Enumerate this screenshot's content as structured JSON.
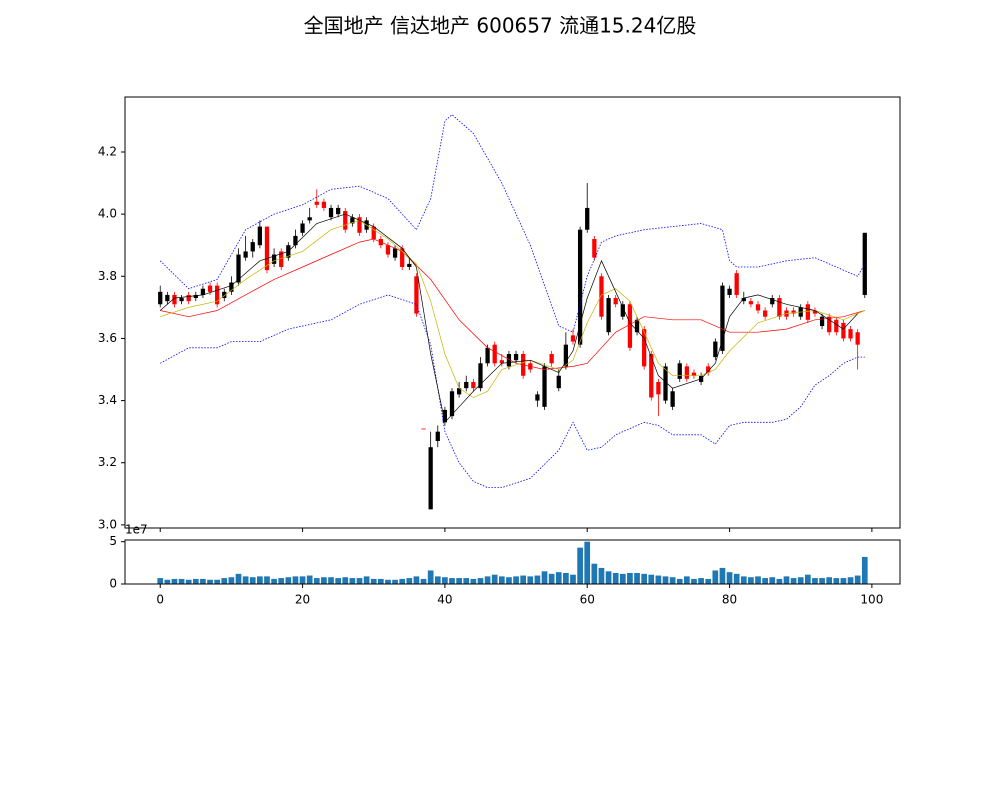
{
  "chart_data": [
    {
      "type": "candlestick",
      "title": "全国地产 信达地产 600657 流通15.24亿股",
      "x": [
        0,
        1,
        2,
        3,
        4,
        5,
        6,
        7,
        8,
        9,
        10,
        11,
        12,
        13,
        14,
        15,
        16,
        17,
        18,
        19,
        20,
        21,
        22,
        23,
        24,
        25,
        26,
        27,
        28,
        29,
        30,
        31,
        32,
        33,
        34,
        35,
        36,
        37,
        38,
        39,
        40,
        41,
        42,
        43,
        44,
        45,
        46,
        47,
        48,
        49,
        50,
        51,
        52,
        53,
        54,
        55,
        56,
        57,
        58,
        59,
        60,
        61,
        62,
        63,
        64,
        65,
        66,
        67,
        68,
        69,
        70,
        71,
        72,
        73,
        74,
        75,
        76,
        77,
        78,
        79,
        80,
        81,
        82,
        83,
        84,
        85,
        86,
        87,
        88,
        89,
        90,
        91,
        92,
        93,
        94,
        95,
        96,
        97,
        98,
        99
      ],
      "open": [
        3.71,
        3.72,
        3.74,
        3.72,
        3.74,
        3.73,
        3.74,
        3.77,
        3.77,
        3.73,
        3.75,
        3.78,
        3.86,
        3.88,
        3.9,
        3.96,
        3.84,
        3.88,
        3.86,
        3.9,
        3.94,
        3.98,
        4.04,
        4.04,
        3.99,
        4.0,
        4.01,
        3.97,
        3.99,
        3.95,
        3.96,
        3.92,
        3.9,
        3.86,
        3.89,
        3.83,
        3.8,
        3.31,
        3.05,
        3.27,
        3.33,
        3.35,
        3.42,
        3.44,
        3.46,
        3.44,
        3.52,
        3.58,
        3.53,
        3.51,
        3.53,
        3.55,
        3.52,
        3.4,
        3.38,
        3.55,
        3.44,
        3.51,
        3.61,
        3.58,
        3.95,
        3.92,
        3.8,
        3.62,
        3.73,
        3.67,
        3.71,
        3.62,
        3.63,
        3.55,
        3.46,
        3.4,
        3.38,
        3.47,
        3.51,
        3.49,
        3.46,
        3.51,
        3.54,
        3.56,
        3.74,
        3.81,
        3.72,
        3.72,
        3.71,
        3.69,
        3.71,
        3.73,
        3.69,
        3.69,
        3.67,
        3.71,
        3.69,
        3.64,
        3.67,
        3.66,
        3.65,
        3.63,
        3.62,
        3.74
      ],
      "high": [
        3.77,
        3.75,
        3.75,
        3.74,
        3.75,
        3.75,
        3.77,
        3.78,
        3.78,
        3.76,
        3.8,
        3.89,
        3.93,
        3.92,
        3.98,
        3.96,
        3.89,
        3.89,
        3.91,
        3.95,
        3.98,
        4.02,
        4.08,
        4.05,
        4.03,
        4.03,
        4.02,
        4.0,
        4.0,
        3.99,
        3.97,
        3.93,
        3.91,
        3.9,
        3.9,
        3.86,
        3.81,
        3.31,
        3.3,
        3.32,
        3.38,
        3.44,
        3.46,
        3.48,
        3.47,
        3.54,
        3.58,
        3.59,
        3.55,
        3.56,
        3.56,
        3.56,
        3.53,
        3.43,
        3.52,
        3.56,
        3.5,
        3.62,
        3.63,
        3.96,
        4.1,
        3.93,
        3.81,
        3.74,
        3.74,
        3.72,
        3.72,
        3.67,
        3.64,
        3.56,
        3.47,
        3.52,
        3.44,
        3.53,
        3.52,
        3.5,
        3.49,
        3.52,
        3.6,
        3.78,
        3.77,
        3.82,
        3.75,
        3.73,
        3.72,
        3.7,
        3.74,
        3.74,
        3.7,
        3.7,
        3.71,
        3.72,
        3.7,
        3.68,
        3.68,
        3.67,
        3.66,
        3.64,
        3.63,
        3.94
      ],
      "low": [
        3.7,
        3.71,
        3.7,
        3.71,
        3.71,
        3.72,
        3.73,
        3.74,
        3.7,
        3.72,
        3.74,
        3.77,
        3.85,
        3.86,
        3.89,
        3.81,
        3.83,
        3.82,
        3.85,
        3.89,
        3.93,
        3.97,
        4.02,
        4.01,
        3.98,
        3.99,
        3.94,
        3.96,
        3.93,
        3.94,
        3.91,
        3.89,
        3.86,
        3.85,
        3.82,
        3.82,
        3.67,
        3.31,
        3.05,
        3.25,
        3.32,
        3.34,
        3.41,
        3.43,
        3.43,
        3.43,
        3.51,
        3.51,
        3.51,
        3.5,
        3.52,
        3.47,
        3.49,
        3.38,
        3.37,
        3.51,
        3.43,
        3.5,
        3.58,
        3.57,
        3.94,
        3.85,
        3.66,
        3.61,
        3.7,
        3.66,
        3.56,
        3.61,
        3.5,
        3.4,
        3.35,
        3.39,
        3.37,
        3.46,
        3.46,
        3.47,
        3.45,
        3.48,
        3.53,
        3.55,
        3.73,
        3.73,
        3.71,
        3.7,
        3.68,
        3.66,
        3.7,
        3.66,
        3.66,
        3.67,
        3.66,
        3.65,
        3.67,
        3.63,
        3.61,
        3.61,
        3.59,
        3.59,
        3.5,
        3.73
      ],
      "close": [
        3.75,
        3.74,
        3.71,
        3.73,
        3.72,
        3.74,
        3.76,
        3.75,
        3.71,
        3.75,
        3.78,
        3.87,
        3.88,
        3.91,
        3.96,
        3.82,
        3.87,
        3.83,
        3.9,
        3.93,
        3.97,
        3.99,
        4.03,
        4.02,
        4.02,
        4.02,
        3.95,
        3.99,
        3.94,
        3.98,
        3.92,
        3.9,
        3.87,
        3.89,
        3.83,
        3.84,
        3.68,
        3.31,
        3.25,
        3.3,
        3.37,
        3.43,
        3.44,
        3.46,
        3.44,
        3.52,
        3.57,
        3.52,
        3.52,
        3.55,
        3.55,
        3.48,
        3.5,
        3.42,
        3.51,
        3.52,
        3.48,
        3.58,
        3.59,
        3.95,
        4.02,
        3.86,
        3.67,
        3.73,
        3.71,
        3.71,
        3.57,
        3.66,
        3.51,
        3.41,
        3.42,
        3.51,
        3.43,
        3.52,
        3.47,
        3.48,
        3.48,
        3.49,
        3.59,
        3.77,
        3.76,
        3.74,
        3.73,
        3.71,
        3.69,
        3.67,
        3.73,
        3.67,
        3.67,
        3.68,
        3.7,
        3.66,
        3.68,
        3.67,
        3.62,
        3.62,
        3.6,
        3.6,
        3.58,
        3.94
      ],
      "up_color": "#000000",
      "down_color": "#ff0000",
      "lines": [
        {
          "color": "#0000ff",
          "style": "dotted",
          "x": [
            0,
            4,
            8,
            12,
            16,
            20,
            24,
            28,
            32,
            36,
            38,
            40,
            41,
            44,
            48,
            52,
            56,
            58,
            60,
            62,
            64,
            68,
            72,
            76,
            79,
            80,
            81,
            84,
            88,
            92,
            96,
            98,
            99
          ],
          "values": [
            3.85,
            3.76,
            3.79,
            3.95,
            4.0,
            4.03,
            4.08,
            4.09,
            4.05,
            3.95,
            4.05,
            4.3,
            4.32,
            4.26,
            4.1,
            3.9,
            3.64,
            3.62,
            3.8,
            3.91,
            3.93,
            3.95,
            3.96,
            3.97,
            3.95,
            3.85,
            3.83,
            3.83,
            3.85,
            3.86,
            3.82,
            3.8,
            3.84
          ]
        },
        {
          "color": "#0000ff",
          "style": "dotted",
          "x": [
            0,
            4,
            8,
            10,
            14,
            18,
            22,
            24,
            28,
            32,
            36,
            38,
            40,
            42,
            44,
            46,
            48,
            52,
            56,
            58,
            60,
            62,
            64,
            68,
            70,
            72,
            76,
            78,
            80,
            82,
            86,
            88,
            90,
            92,
            94,
            96,
            98,
            99
          ],
          "values": [
            3.52,
            3.57,
            3.57,
            3.59,
            3.59,
            3.63,
            3.65,
            3.66,
            3.71,
            3.74,
            3.71,
            3.58,
            3.3,
            3.2,
            3.14,
            3.12,
            3.12,
            3.15,
            3.24,
            3.33,
            3.24,
            3.25,
            3.29,
            3.33,
            3.32,
            3.29,
            3.29,
            3.26,
            3.32,
            3.33,
            3.33,
            3.34,
            3.38,
            3.45,
            3.48,
            3.52,
            3.54,
            3.54
          ]
        },
        {
          "color": "#ff0000",
          "style": "solid",
          "x": [
            0,
            4,
            8,
            12,
            16,
            20,
            24,
            28,
            30,
            34,
            38,
            42,
            46,
            50,
            54,
            58,
            60,
            64,
            68,
            72,
            76,
            80,
            84,
            88,
            92,
            96,
            99
          ],
          "values": [
            3.69,
            3.67,
            3.69,
            3.74,
            3.79,
            3.83,
            3.87,
            3.91,
            3.92,
            3.88,
            3.79,
            3.66,
            3.57,
            3.52,
            3.5,
            3.51,
            3.52,
            3.62,
            3.67,
            3.66,
            3.66,
            3.62,
            3.62,
            3.63,
            3.66,
            3.67,
            3.69
          ]
        },
        {
          "color": "#c8b400",
          "style": "solid",
          "x": [
            0,
            4,
            8,
            12,
            16,
            20,
            24,
            28,
            32,
            36,
            38,
            40,
            42,
            44,
            46,
            48,
            52,
            56,
            58,
            60,
            62,
            64,
            66,
            68,
            70,
            72,
            76,
            78,
            80,
            84,
            88,
            92,
            96,
            99
          ],
          "values": [
            3.67,
            3.7,
            3.72,
            3.79,
            3.85,
            3.88,
            3.95,
            3.98,
            3.92,
            3.84,
            3.72,
            3.55,
            3.44,
            3.41,
            3.43,
            3.5,
            3.53,
            3.5,
            3.53,
            3.65,
            3.74,
            3.76,
            3.72,
            3.62,
            3.52,
            3.48,
            3.48,
            3.5,
            3.56,
            3.65,
            3.68,
            3.69,
            3.66,
            3.69
          ]
        },
        {
          "color": "#000000",
          "style": "solid",
          "x": [
            0,
            2,
            6,
            10,
            14,
            18,
            22,
            26,
            30,
            34,
            36,
            38,
            40,
            42,
            44,
            48,
            52,
            56,
            58,
            60,
            62,
            64,
            66,
            68,
            70,
            72,
            76,
            78,
            80,
            82,
            84,
            88,
            92,
            96,
            98
          ],
          "values": [
            3.69,
            3.73,
            3.74,
            3.77,
            3.85,
            3.88,
            3.97,
            4.0,
            3.96,
            3.89,
            3.83,
            3.55,
            3.33,
            3.38,
            3.43,
            3.52,
            3.53,
            3.49,
            3.56,
            3.73,
            3.85,
            3.75,
            3.65,
            3.6,
            3.48,
            3.44,
            3.47,
            3.52,
            3.67,
            3.73,
            3.74,
            3.71,
            3.69,
            3.63,
            3.68
          ]
        }
      ],
      "xlim": [
        -4.95,
        103.95
      ],
      "ylim": [
        2.99,
        4.377
      ],
      "yticks": [
        {
          "value": 3,
          "label": "3.0"
        },
        3.2,
        3.4,
        3.6,
        3.8,
        {
          "value": 4,
          "label": "4.0"
        },
        4.2
      ]
    },
    {
      "type": "bar",
      "color": "#1f77b4",
      "values": [
        7000000,
        5000000,
        6000000,
        6000000,
        5000000,
        6000000,
        6000000,
        5000000,
        5000000,
        7000000,
        8000000,
        12000000,
        9000000,
        8000000,
        9000000,
        9000000,
        6000000,
        7000000,
        8000000,
        9000000,
        9000000,
        10000000,
        7000000,
        8000000,
        8000000,
        7000000,
        8000000,
        7000000,
        7000000,
        9000000,
        6000000,
        6000000,
        5000000,
        5000000,
        6000000,
        7000000,
        9000000,
        6000000,
        16000000,
        9000000,
        8000000,
        7000000,
        7000000,
        7000000,
        6000000,
        7000000,
        9000000,
        11000000,
        9000000,
        8000000,
        9000000,
        10000000,
        9000000,
        10000000,
        15000000,
        12000000,
        14000000,
        13000000,
        11000000,
        43000000,
        50000000,
        24000000,
        19000000,
        15000000,
        13000000,
        12000000,
        13000000,
        13000000,
        12000000,
        11000000,
        10000000,
        9000000,
        8000000,
        6000000,
        9000000,
        6000000,
        7000000,
        6000000,
        16000000,
        19000000,
        14000000,
        12000000,
        9000000,
        8000000,
        9000000,
        7000000,
        8000000,
        6000000,
        9000000,
        7000000,
        8000000,
        11000000,
        7000000,
        7000000,
        8000000,
        7000000,
        7000000,
        8000000,
        10000000,
        32000000
      ],
      "xlim": [
        -4.95,
        103.95
      ],
      "xticks": [
        0,
        20,
        40,
        60,
        80,
        100
      ],
      "ylim": [
        0,
        52000000
      ],
      "yticks": [
        0,
        {
          "value": 50000000,
          "label": "5"
        }
      ],
      "offset_label": "1e7"
    }
  ]
}
